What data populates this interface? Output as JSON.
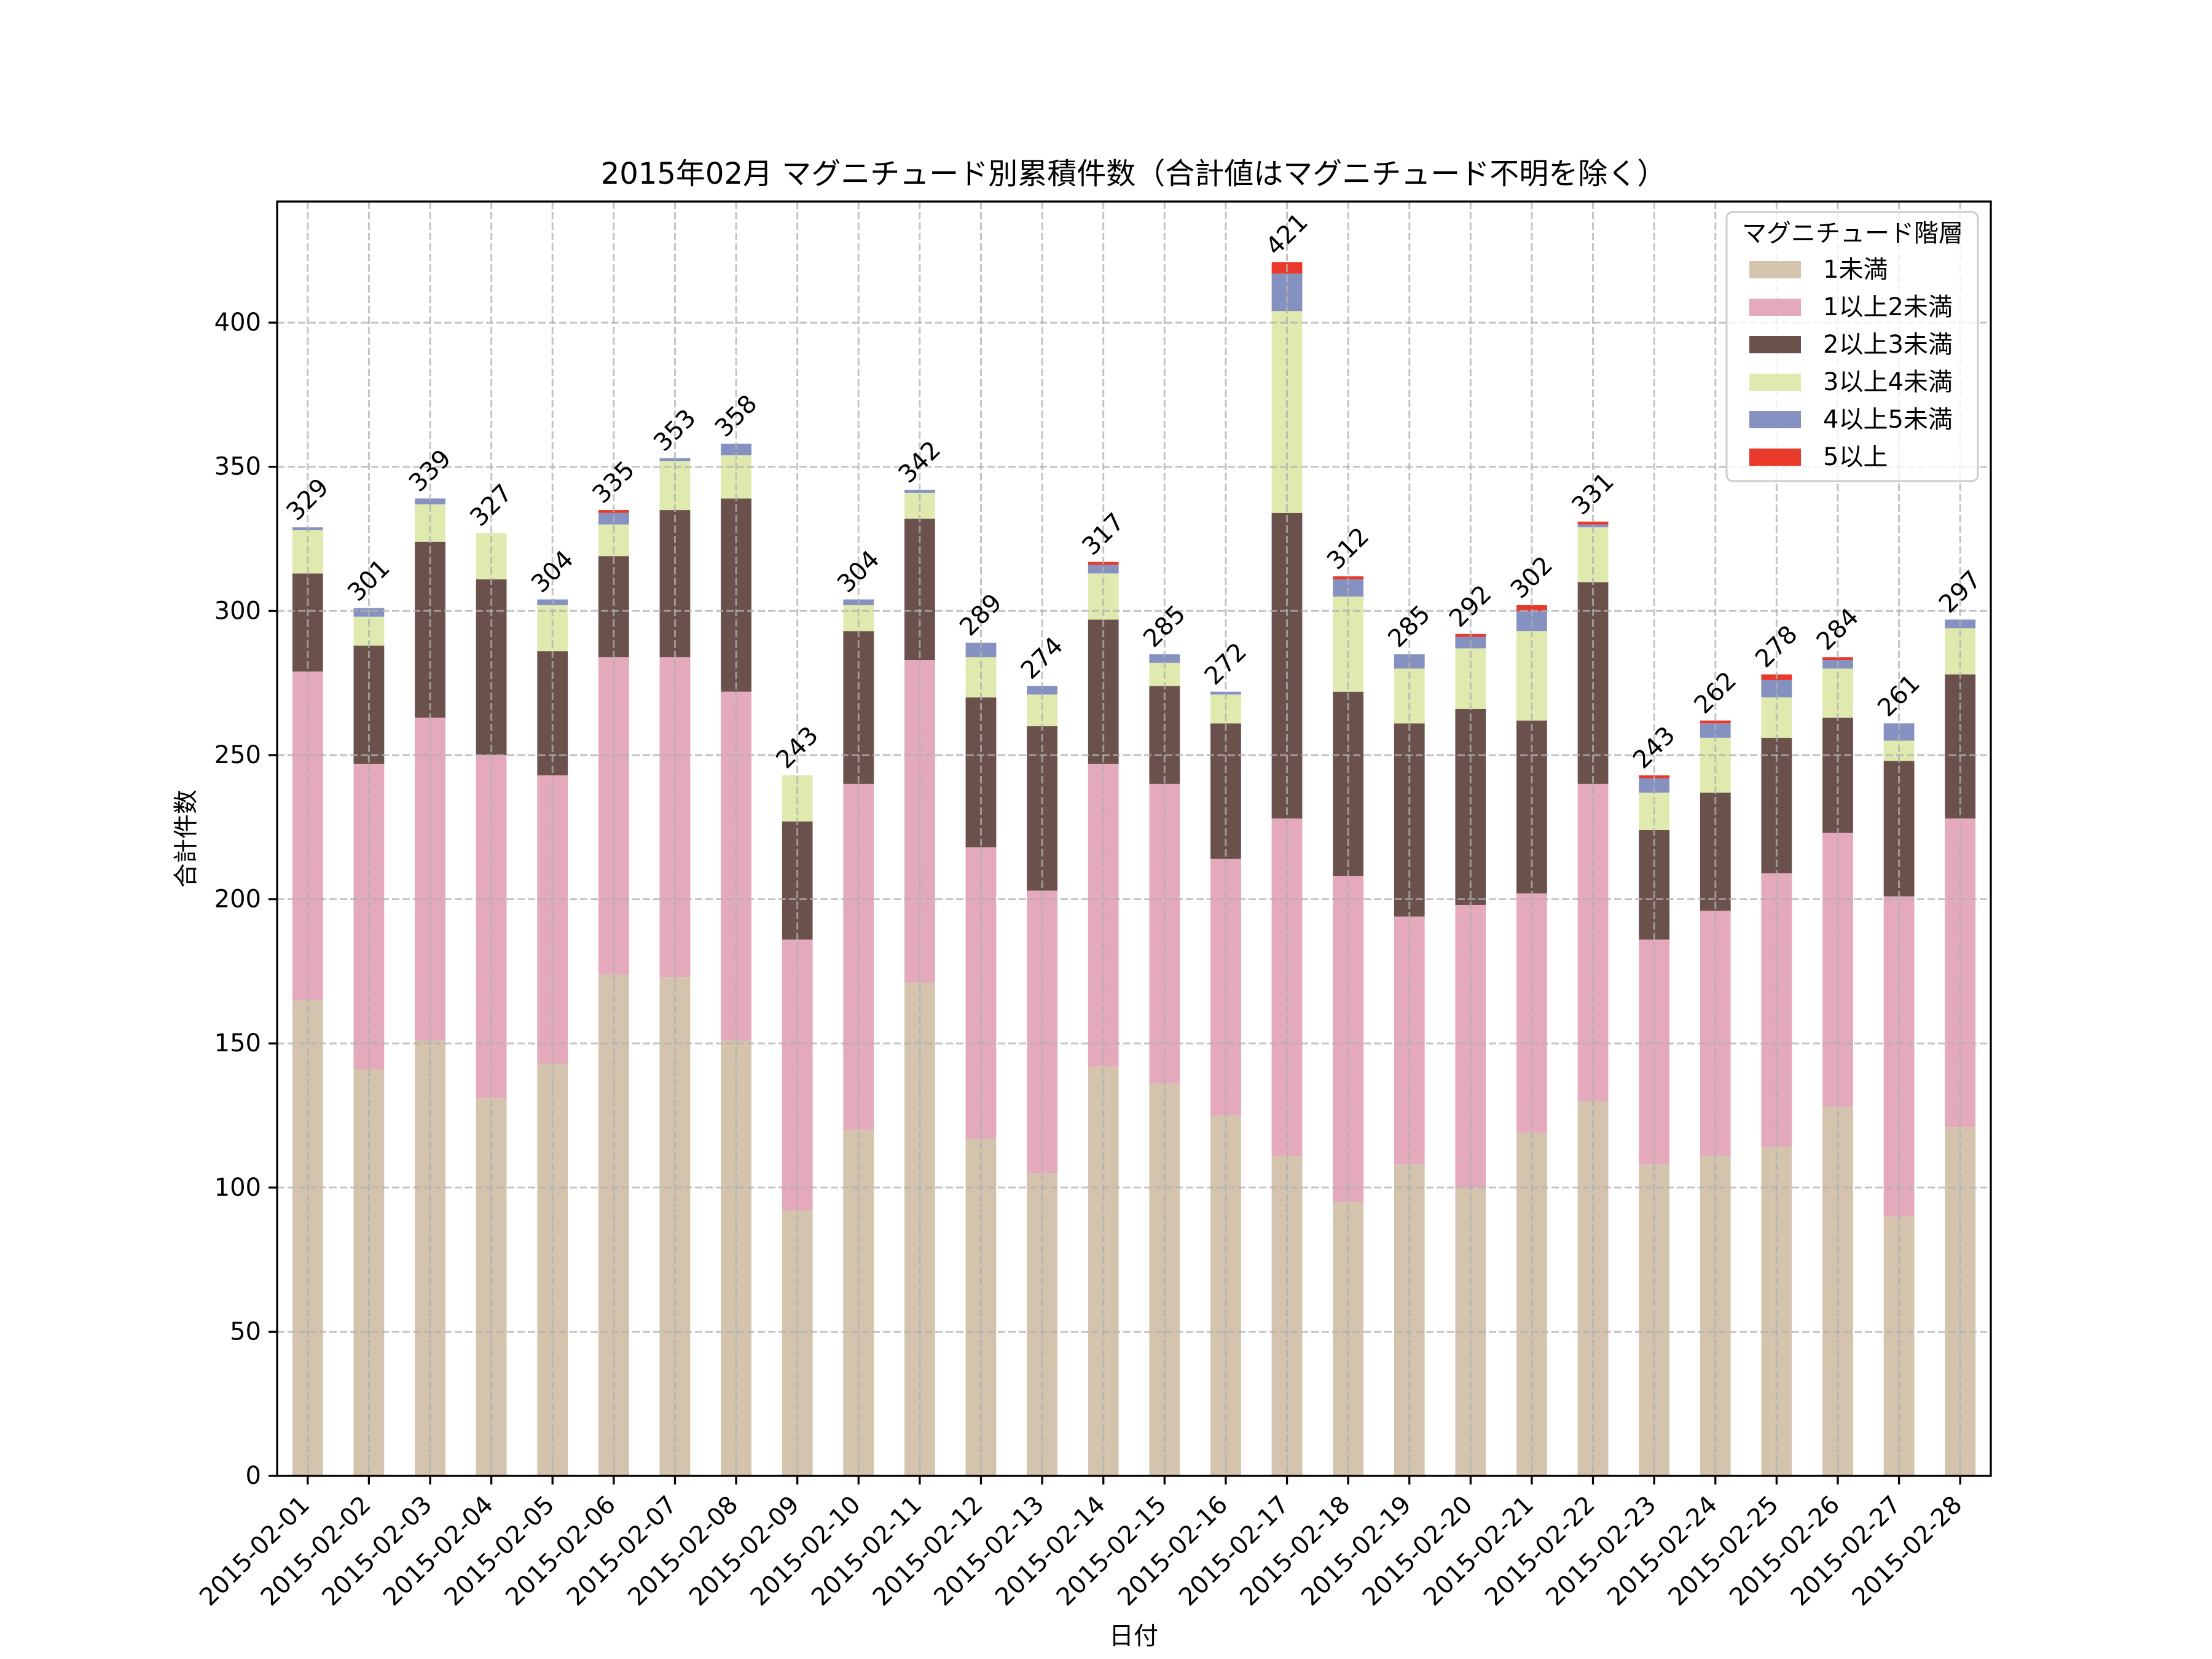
{
  "chart_data": {
    "type": "bar",
    "stacked": true,
    "title": "2015年02月 マグニチュード別累積件数（合計値はマグニチュード不明を除く）",
    "xlabel": "日付",
    "ylabel": "合計件数",
    "categories": [
      "2015-02-01",
      "2015-02-02",
      "2015-02-03",
      "2015-02-04",
      "2015-02-05",
      "2015-02-06",
      "2015-02-07",
      "2015-02-08",
      "2015-02-09",
      "2015-02-10",
      "2015-02-11",
      "2015-02-12",
      "2015-02-13",
      "2015-02-14",
      "2015-02-15",
      "2015-02-16",
      "2015-02-17",
      "2015-02-18",
      "2015-02-19",
      "2015-02-20",
      "2015-02-21",
      "2015-02-22",
      "2015-02-23",
      "2015-02-24",
      "2015-02-25",
      "2015-02-26",
      "2015-02-27",
      "2015-02-28"
    ],
    "series": [
      {
        "name": "1未満",
        "color": "#D4C4AE",
        "values": [
          165,
          141,
          151,
          131,
          143,
          174,
          173,
          151,
          92,
          120,
          171,
          117,
          105,
          142,
          136,
          125,
          111,
          95,
          108,
          100,
          119,
          130,
          108,
          111,
          114,
          128,
          90,
          121
        ]
      },
      {
        "name": "1以上2未満",
        "color": "#E4A9BB",
        "values": [
          114,
          106,
          112,
          119,
          100,
          110,
          111,
          121,
          94,
          120,
          112,
          101,
          98,
          105,
          104,
          89,
          117,
          113,
          86,
          98,
          83,
          110,
          78,
          85,
          95,
          95,
          111,
          107
        ]
      },
      {
        "name": "2以上3未満",
        "color": "#6B514B",
        "values": [
          34,
          41,
          61,
          61,
          43,
          35,
          51,
          67,
          41,
          53,
          49,
          52,
          57,
          50,
          34,
          47,
          106,
          64,
          67,
          68,
          60,
          70,
          38,
          41,
          47,
          40,
          47,
          50
        ]
      },
      {
        "name": "3以上4未満",
        "color": "#E0EAAF",
        "values": [
          15,
          10,
          13,
          16,
          16,
          11,
          17,
          15,
          16,
          9,
          9,
          14,
          11,
          16,
          8,
          10,
          70,
          33,
          19,
          21,
          31,
          19,
          13,
          19,
          14,
          17,
          7,
          16
        ]
      },
      {
        "name": "4以上5未満",
        "color": "#8591C1",
        "values": [
          1,
          3,
          2,
          0,
          2,
          4,
          1,
          4,
          0,
          2,
          1,
          5,
          3,
          3,
          3,
          1,
          13,
          6,
          5,
          4,
          7,
          1,
          5,
          5,
          6,
          3,
          6,
          3
        ]
      },
      {
        "name": "5以上",
        "color": "#E8392B",
        "values": [
          0,
          0,
          0,
          0,
          0,
          1,
          0,
          0,
          0,
          0,
          0,
          0,
          0,
          1,
          0,
          0,
          4,
          1,
          0,
          1,
          2,
          1,
          1,
          1,
          2,
          1,
          0,
          0
        ]
      }
    ],
    "totals": [
      329,
      301,
      339,
      327,
      304,
      335,
      353,
      358,
      243,
      304,
      342,
      289,
      274,
      317,
      285,
      272,
      421,
      312,
      285,
      292,
      302,
      331,
      243,
      262,
      278,
      284,
      261,
      297
    ],
    "ylim": [
      0,
      442
    ],
    "xlim": [
      -0.5,
      27.5
    ],
    "yticks": [
      0,
      50,
      100,
      150,
      200,
      250,
      300,
      350,
      400
    ],
    "grid": true,
    "legend": {
      "title": "マグニチュード階層",
      "position": "top-right"
    }
  }
}
